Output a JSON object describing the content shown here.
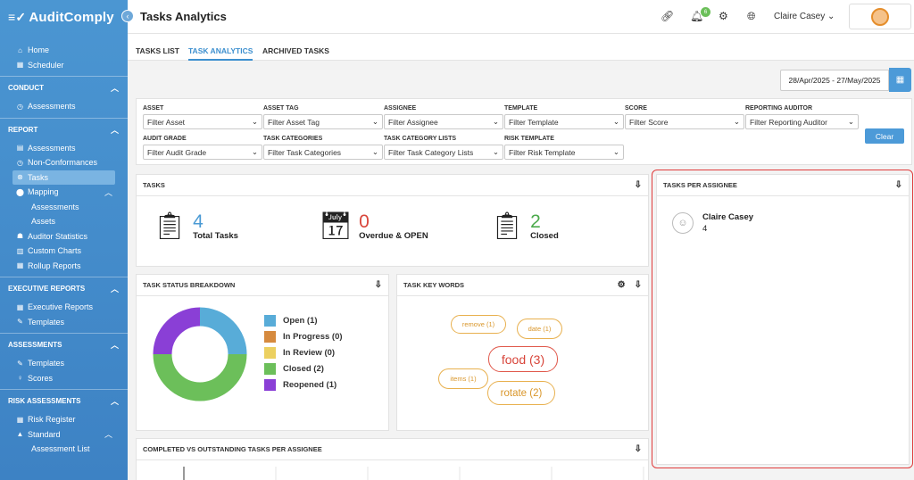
{
  "app": {
    "name": "AuditComply",
    "logo_icon": "check-circle-icon"
  },
  "header": {
    "title": "Tasks Analytics",
    "notification_count": "6",
    "user_name": "Claire Casey"
  },
  "sidebar": {
    "top_items": [
      {
        "label": "Home",
        "icon": "home-icon"
      },
      {
        "label": "Scheduler",
        "icon": "calendar-icon"
      }
    ],
    "conduct": {
      "title": "CONDUCT",
      "items": [
        {
          "label": "Assessments"
        }
      ]
    },
    "report": {
      "title": "REPORT",
      "items": [
        "Assessments",
        "Non-Conformances",
        "Tasks",
        "Mapping",
        "Assessments",
        "Assets",
        "Auditor Statistics",
        "Custom Charts",
        "Rollup Reports"
      ]
    },
    "executive": {
      "title": "EXECUTIVE REPORTS",
      "items": [
        "Executive Reports",
        "Templates"
      ]
    },
    "assessments": {
      "title": "ASSESSMENTS",
      "items": [
        "Templates",
        "Scores"
      ]
    },
    "risk": {
      "title": "RISK ASSESSMENTS",
      "items": [
        "Risk Register",
        "Standard",
        "Assessment List"
      ]
    }
  },
  "tabs": [
    {
      "label": "TASKS LIST"
    },
    {
      "label": "TASK ANALYTICS"
    },
    {
      "label": "ARCHIVED TASKS"
    }
  ],
  "date_range": "28/Apr/2025 - 27/May/2025",
  "filters": [
    {
      "label": "ASSET",
      "placeholder": "Filter Asset"
    },
    {
      "label": "ASSET TAG",
      "placeholder": "Filter Asset Tag"
    },
    {
      "label": "ASSIGNEE",
      "placeholder": "Filter Assignee"
    },
    {
      "label": "TEMPLATE",
      "placeholder": "Filter Template"
    },
    {
      "label": "SCORE",
      "placeholder": "Filter Score"
    },
    {
      "label": "REPORTING AUDITOR",
      "placeholder": "Filter Reporting Auditor"
    },
    {
      "label": "AUDIT GRADE",
      "placeholder": "Filter Audit Grade"
    },
    {
      "label": "TASK CATEGORIES",
      "placeholder": "Filter Task Categories"
    },
    {
      "label": "TASK CATEGORY LISTS",
      "placeholder": "Filter Task Category Lists"
    },
    {
      "label": "RISK TEMPLATE",
      "placeholder": "Filter Risk Template"
    }
  ],
  "clear_label": "Clear",
  "tasks_card": {
    "title": "TASKS",
    "stats": [
      {
        "value": "4",
        "label": "Total Tasks",
        "color": "#4a9ad4"
      },
      {
        "value": "0",
        "label": "Overdue & OPEN",
        "color": "#d9463b"
      },
      {
        "value": "2",
        "label": "Closed",
        "color": "#4caa4c"
      }
    ]
  },
  "status_card": {
    "title": "TASK STATUS BREAKDOWN",
    "legend": [
      {
        "label": "Open (1)",
        "color": "#58acd8"
      },
      {
        "label": "In Progress (0)",
        "color": "#d68a3e"
      },
      {
        "label": "In Review (0)",
        "color": "#ecd060"
      },
      {
        "label": "Closed (2)",
        "color": "#6cbf5a"
      },
      {
        "label": "Reopened (1)",
        "color": "#8a3fd6"
      }
    ],
    "donut": [
      {
        "name": "Open",
        "value": 1,
        "color": "#58acd8"
      },
      {
        "name": "Closed",
        "value": 2,
        "color": "#6cbf5a"
      },
      {
        "name": "Reopened",
        "value": 1,
        "color": "#8a3fd6"
      }
    ]
  },
  "keywords_card": {
    "title": "TASK KEY WORDS",
    "words": [
      {
        "text": "remove (1)"
      },
      {
        "text": "date (1)"
      },
      {
        "text": "food (3)"
      },
      {
        "text": "items (1)"
      },
      {
        "text": "rotate (2)"
      }
    ]
  },
  "completed_card": {
    "title": "COMPLETED VS OUTSTANDING TASKS PER ASSIGNEE"
  },
  "assignee_card": {
    "title": "TASKS PER ASSIGNEE",
    "items": [
      {
        "name": "Claire Casey",
        "count": "4"
      }
    ]
  }
}
